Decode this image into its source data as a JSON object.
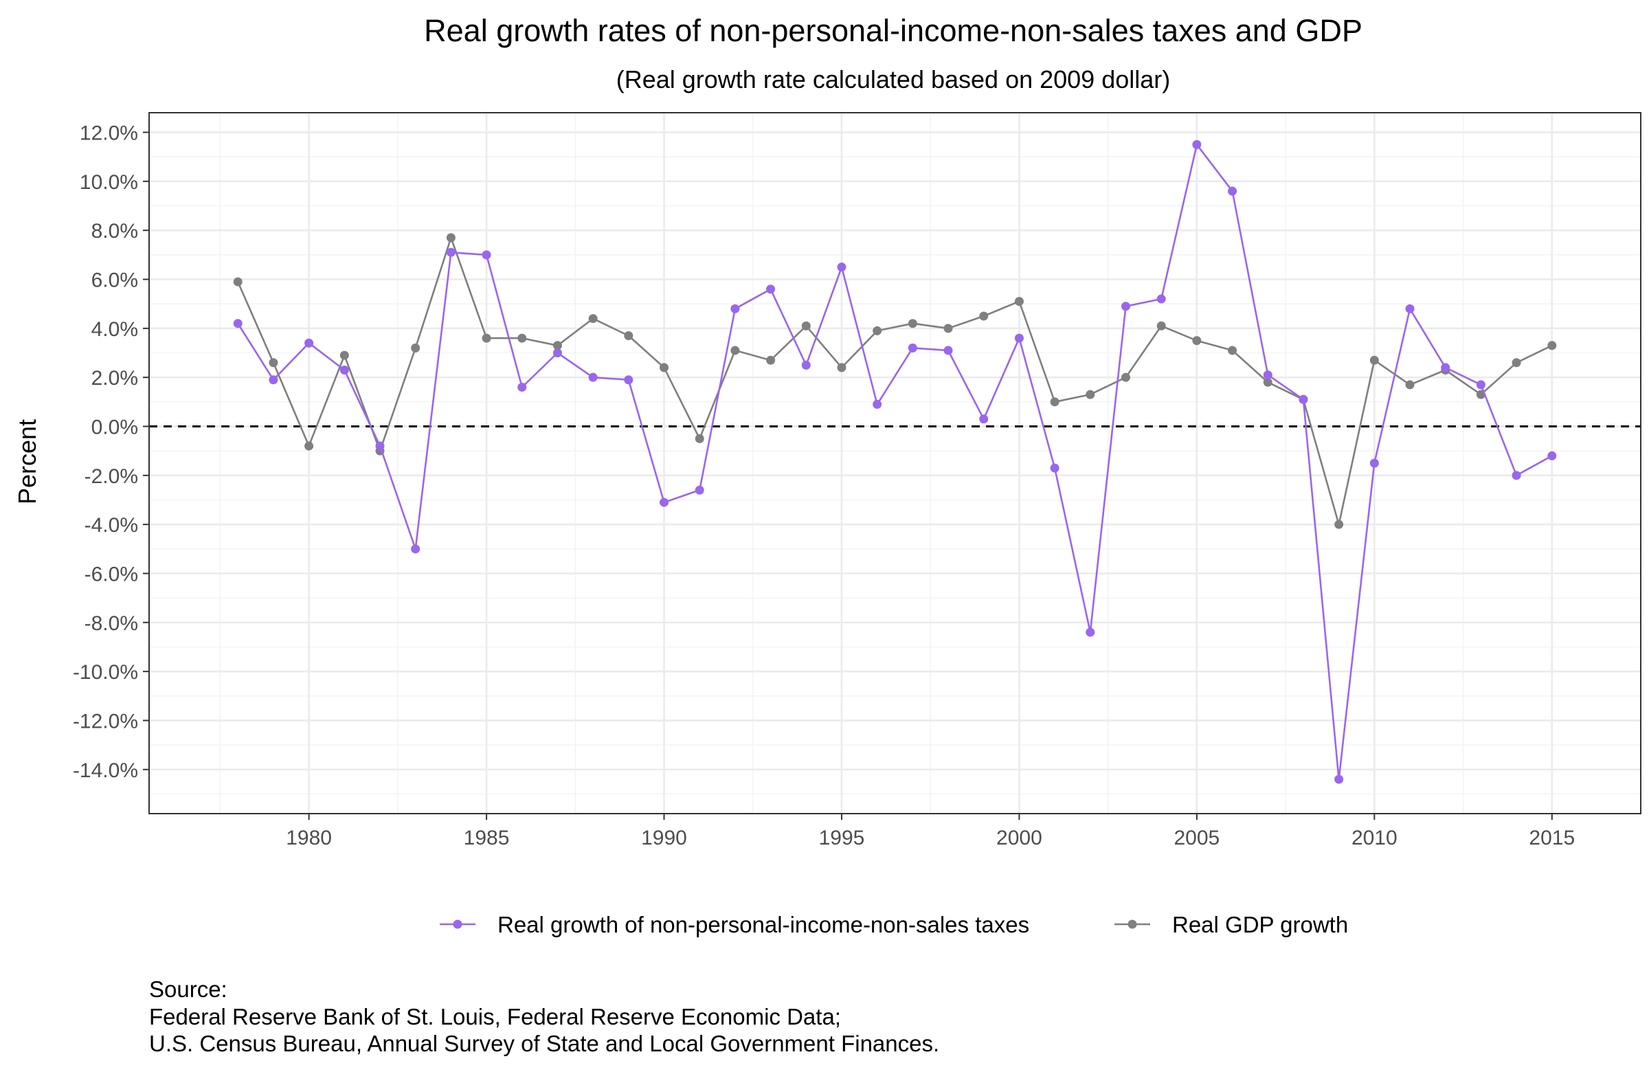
{
  "chart_data": {
    "type": "line",
    "title": "Real growth rates of non-personal-income-non-sales taxes and GDP",
    "subtitle": "(Real growth rate calculated based on 2009 dollar)",
    "ylabel": "Percent",
    "xlabel": "",
    "xlim": [
      1975.5,
      2017.5
    ],
    "ylim": [
      -15.8,
      12.8
    ],
    "x_ticks": [
      1980,
      1985,
      1990,
      1995,
      2000,
      2005,
      2010,
      2015
    ],
    "x_tick_labels": [
      "1980",
      "1985",
      "1990",
      "1995",
      "2000",
      "2005",
      "2010",
      "2015"
    ],
    "y_ticks": [
      12,
      10,
      8,
      6,
      4,
      2,
      0,
      -2,
      -4,
      -6,
      -8,
      -10,
      -12,
      -14
    ],
    "y_tick_labels": [
      "12.0%",
      "10.0%",
      "8.0%",
      "6.0%",
      "4.0%",
      "2.0%",
      "0.0%",
      "-2.0%",
      "-4.0%",
      "-6.0%",
      "-8.0%",
      "-10.0%",
      "-12.0%",
      "-14.0%"
    ],
    "reference_line": {
      "y": 0,
      "style": "dashed",
      "color": "#000000"
    },
    "grid": true,
    "legend_position": "bottom",
    "x": [
      1978,
      1979,
      1980,
      1981,
      1982,
      1983,
      1984,
      1985,
      1986,
      1987,
      1988,
      1989,
      1990,
      1991,
      1992,
      1993,
      1994,
      1995,
      1996,
      1997,
      1998,
      1999,
      2000,
      2001,
      2002,
      2003,
      2004,
      2005,
      2006,
      2007,
      2008,
      2009,
      2010,
      2011,
      2012,
      2013,
      2014,
      2015
    ],
    "series": [
      {
        "name": "Real growth of non-personal-income-non-sales taxes",
        "color": "#9966ee",
        "values": [
          4.2,
          1.9,
          3.4,
          2.3,
          -0.8,
          -5.0,
          7.1,
          7.0,
          1.6,
          3.0,
          2.0,
          1.9,
          -3.1,
          -2.6,
          4.8,
          5.6,
          2.5,
          6.5,
          0.9,
          3.2,
          3.1,
          0.3,
          3.6,
          -1.7,
          -8.4,
          4.9,
          5.2,
          11.5,
          9.6,
          2.1,
          1.1,
          -14.4,
          -1.5,
          4.8,
          2.4,
          1.7,
          -2.0,
          -1.2
        ]
      },
      {
        "name": "Real GDP growth",
        "color": "#7f7f7f",
        "values": [
          5.9,
          2.6,
          -0.8,
          2.9,
          -1.0,
          3.2,
          7.7,
          3.6,
          3.6,
          3.3,
          4.4,
          3.7,
          2.4,
          -0.5,
          3.1,
          2.7,
          4.1,
          2.4,
          3.9,
          4.2,
          4.0,
          4.5,
          5.1,
          1.0,
          1.3,
          2.0,
          4.1,
          3.5,
          3.1,
          1.8,
          1.1,
          -4.0,
          2.7,
          1.7,
          2.3,
          1.3,
          2.6,
          3.3
        ]
      }
    ]
  },
  "source": {
    "heading": "Source:",
    "line1": "Federal Reserve Bank of St. Louis, Federal Reserve Economic Data;",
    "line2": "U.S. Census Bureau, Annual Survey of State and Local Government Finances."
  }
}
